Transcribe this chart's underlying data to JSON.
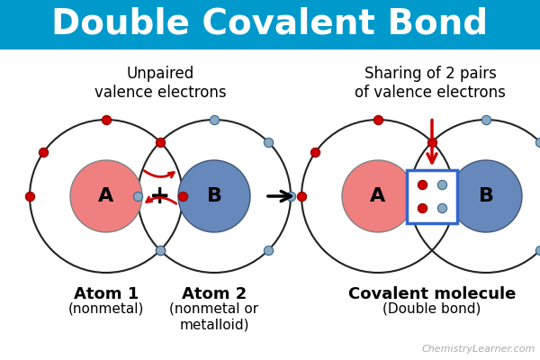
{
  "title": "Double Covalent Bond",
  "title_bg": "#0099cc",
  "title_color": "white",
  "title_fontsize": 28,
  "bg_color": "white",
  "atom1_label": "A",
  "atom2_label": "B",
  "atom1_nucleus_color": "#f08080",
  "atom2_nucleus_color": "#6688bb",
  "electron_color_red": "#cc0000",
  "electron_color_blue": "#8aaabb",
  "orbit_color": "#222222",
  "left_label": "Unpaired\nvalence electrons",
  "right_label": "Sharing of 2 pairs\nof valence electrons",
  "label1_bold": "Atom 1",
  "label1_normal": "(nonmetal)",
  "label2_bold": "Atom 2",
  "label2_normal": "(nonmetal or\nmetalloid)",
  "label3_bold": "Covalent molecule",
  "label3_normal": "(Double bond)",
  "watermark": "ChemistryLearner.com",
  "shared_box_color": "#3366cc",
  "fig_width": 6.0,
  "fig_height": 4.0,
  "dpi": 100
}
